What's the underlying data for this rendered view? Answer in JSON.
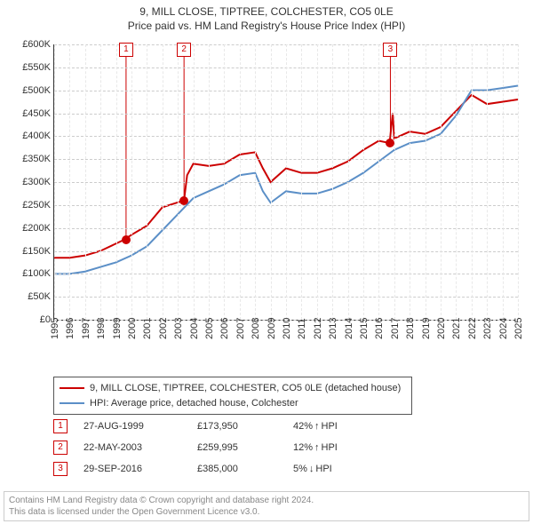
{
  "title_line1": "9, MILL CLOSE, TIPTREE, COLCHESTER, CO5 0LE",
  "title_line2": "Price paid vs. HM Land Registry's House Price Index (HPI)",
  "chart": {
    "type": "line",
    "ylim": [
      0,
      600
    ],
    "ytick_step": 50,
    "ytick_format_prefix": "£",
    "ytick_format_suffix": "K",
    "xlim": [
      1995,
      2025
    ],
    "xticks": [
      1995,
      1996,
      1997,
      1998,
      1999,
      2000,
      2001,
      2002,
      2003,
      2004,
      2005,
      2006,
      2007,
      2008,
      2009,
      2010,
      2011,
      2012,
      2013,
      2014,
      2015,
      2016,
      2017,
      2018,
      2019,
      2020,
      2021,
      2022,
      2023,
      2024,
      2025
    ],
    "grid_color": "#cccccc",
    "background_color": "#ffffff",
    "axis_color": "#333333",
    "series": [
      {
        "name": "property",
        "color": "#cc0000",
        "width": 2,
        "points": [
          [
            1995,
            135
          ],
          [
            1996,
            135
          ],
          [
            1997,
            140
          ],
          [
            1998,
            150
          ],
          [
            1999.5,
            174
          ],
          [
            2000,
            185
          ],
          [
            2001,
            205
          ],
          [
            2002,
            245
          ],
          [
            2003.4,
            260
          ],
          [
            2003.6,
            315
          ],
          [
            2004,
            340
          ],
          [
            2005,
            335
          ],
          [
            2006,
            340
          ],
          [
            2007,
            360
          ],
          [
            2008,
            365
          ],
          [
            2008.5,
            330
          ],
          [
            2009,
            300
          ],
          [
            2010,
            330
          ],
          [
            2011,
            320
          ],
          [
            2012,
            320
          ],
          [
            2013,
            330
          ],
          [
            2014,
            345
          ],
          [
            2015,
            370
          ],
          [
            2016,
            390
          ],
          [
            2016.7,
            385
          ],
          [
            2016.9,
            450
          ],
          [
            2017,
            395
          ],
          [
            2018,
            410
          ],
          [
            2019,
            405
          ],
          [
            2020,
            420
          ],
          [
            2021,
            455
          ],
          [
            2022,
            490
          ],
          [
            2023,
            470
          ],
          [
            2024,
            475
          ],
          [
            2025,
            480
          ]
        ]
      },
      {
        "name": "hpi",
        "color": "#5b8fc7",
        "width": 2,
        "points": [
          [
            1995,
            100
          ],
          [
            1996,
            100
          ],
          [
            1997,
            105
          ],
          [
            1998,
            115
          ],
          [
            1999,
            125
          ],
          [
            2000,
            140
          ],
          [
            2001,
            160
          ],
          [
            2002,
            195
          ],
          [
            2003,
            230
          ],
          [
            2004,
            265
          ],
          [
            2005,
            280
          ],
          [
            2006,
            295
          ],
          [
            2007,
            315
          ],
          [
            2008,
            320
          ],
          [
            2008.5,
            280
          ],
          [
            2009,
            255
          ],
          [
            2010,
            280
          ],
          [
            2011,
            275
          ],
          [
            2012,
            275
          ],
          [
            2013,
            285
          ],
          [
            2014,
            300
          ],
          [
            2015,
            320
          ],
          [
            2016,
            345
          ],
          [
            2017,
            370
          ],
          [
            2018,
            385
          ],
          [
            2019,
            390
          ],
          [
            2020,
            405
          ],
          [
            2021,
            445
          ],
          [
            2022,
            500
          ],
          [
            2023,
            500
          ],
          [
            2024,
            505
          ],
          [
            2025,
            510
          ]
        ]
      }
    ],
    "markers": [
      {
        "num": "1",
        "x": 1999.65,
        "y": 174
      },
      {
        "num": "2",
        "x": 2003.4,
        "y": 260
      },
      {
        "num": "3",
        "x": 2016.75,
        "y": 385
      }
    ]
  },
  "legend": {
    "items": [
      {
        "color": "#cc0000",
        "label": "9, MILL CLOSE, TIPTREE, COLCHESTER, CO5 0LE (detached house)"
      },
      {
        "color": "#5b8fc7",
        "label": "HPI: Average price, detached house, Colchester"
      }
    ]
  },
  "events": [
    {
      "num": "1",
      "date": "27-AUG-1999",
      "price": "£173,950",
      "delta": "42%",
      "arrow": "↑",
      "delta_label": "HPI"
    },
    {
      "num": "2",
      "date": "22-MAY-2003",
      "price": "£259,995",
      "delta": "12%",
      "arrow": "↑",
      "delta_label": "HPI"
    },
    {
      "num": "3",
      "date": "29-SEP-2016",
      "price": "£385,000",
      "delta": "5%",
      "arrow": "↓",
      "delta_label": "HPI"
    }
  ],
  "footer_line1": "Contains HM Land Registry data © Crown copyright and database right 2024.",
  "footer_line2": "This data is licensed under the Open Government Licence v3.0."
}
